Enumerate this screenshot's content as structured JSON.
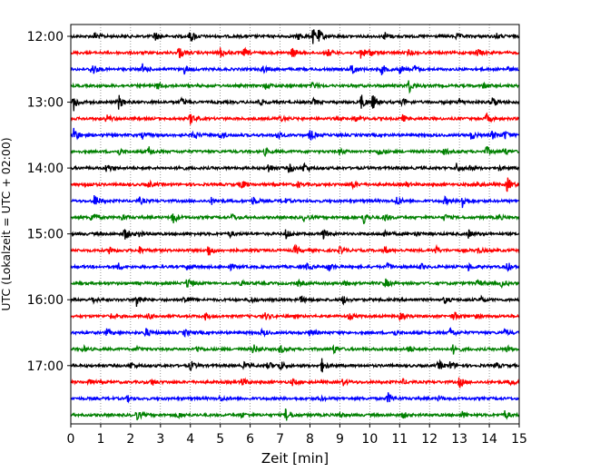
{
  "chart_data": {
    "type": "line",
    "xlabel": "Zeit  [min]",
    "ylabel": "UTC (Lokalzeit = UTC + 02:00)",
    "xlim": [
      0,
      15
    ],
    "x_ticks": [
      0,
      1,
      2,
      3,
      4,
      5,
      6,
      7,
      8,
      9,
      10,
      11,
      12,
      13,
      14,
      15
    ],
    "x_tick_labels": [
      "0",
      "1",
      "2",
      "3",
      "4",
      "5",
      "6",
      "7",
      "8",
      "9",
      "10",
      "11",
      "12",
      "13",
      "14",
      "15"
    ],
    "y_tick_labels": [
      "12:00",
      "13:00",
      "14:00",
      "15:00",
      "16:00",
      "17:00"
    ],
    "grid": {
      "vertical": true,
      "horizontal": false,
      "style": "dotted"
    },
    "trace_interval_min": 15,
    "trace_count": 24,
    "start_time": "12:00",
    "series_colors": [
      "#000000",
      "#ff0000",
      "#0000ff",
      "#008000"
    ],
    "traces": [
      {
        "start": "12:00",
        "color": "#000000",
        "events": [
          [
            0.8,
            0.5
          ],
          [
            2.8,
            0.6
          ],
          [
            4.0,
            0.8
          ],
          [
            7.6,
            0.4
          ],
          [
            8.1,
            0.9
          ],
          [
            8.3,
            0.6
          ],
          [
            10.5,
            0.5
          ],
          [
            12.9,
            0.3
          ],
          [
            14.2,
            0.4
          ]
        ]
      },
      {
        "start": "12:15",
        "color": "#ff0000",
        "events": [
          [
            3.6,
            0.8
          ],
          [
            5.0,
            0.6
          ],
          [
            5.8,
            0.5
          ],
          [
            7.4,
            0.6
          ],
          [
            8.6,
            0.4
          ],
          [
            9.7,
            0.7
          ],
          [
            10.0,
            0.4
          ],
          [
            11.3,
            0.3
          ],
          [
            13.6,
            0.5
          ]
        ]
      },
      {
        "start": "12:30",
        "color": "#0000ff",
        "events": [
          [
            0.7,
            0.9
          ],
          [
            2.4,
            0.6
          ],
          [
            3.8,
            0.5
          ],
          [
            6.4,
            0.5
          ],
          [
            9.4,
            0.9
          ],
          [
            10.4,
            0.6
          ],
          [
            11.0,
            0.5
          ],
          [
            11.5,
            0.4
          ],
          [
            14.6,
            0.3
          ]
        ]
      },
      {
        "start": "12:45",
        "color": "#008000",
        "events": [
          [
            2.9,
            0.4
          ],
          [
            6.5,
            0.4
          ],
          [
            8.1,
            0.4
          ],
          [
            11.3,
            0.9
          ],
          [
            13.8,
            0.3
          ]
        ]
      },
      {
        "start": "13:00",
        "color": "#000000",
        "events": [
          [
            0.1,
            1.0
          ],
          [
            1.6,
            0.9
          ],
          [
            3.7,
            0.5
          ],
          [
            6.3,
            0.4
          ],
          [
            8.1,
            0.4
          ],
          [
            9.7,
            1.0
          ],
          [
            10.1,
            0.9
          ],
          [
            11.1,
            0.4
          ],
          [
            13.0,
            0.4
          ],
          [
            14.1,
            0.7
          ]
        ]
      },
      {
        "start": "13:15",
        "color": "#ff0000",
        "events": [
          [
            1.2,
            0.5
          ],
          [
            4.0,
            0.7
          ],
          [
            7.0,
            0.4
          ],
          [
            9.5,
            0.4
          ],
          [
            11.1,
            0.4
          ],
          [
            13.9,
            0.6
          ]
        ]
      },
      {
        "start": "13:30",
        "color": "#0000ff",
        "events": [
          [
            0.1,
            1.0
          ],
          [
            2.4,
            0.4
          ],
          [
            4.1,
            0.6
          ],
          [
            5.0,
            0.5
          ],
          [
            6.9,
            0.5
          ],
          [
            8.0,
            0.7
          ],
          [
            13.4,
            0.6
          ],
          [
            14.1,
            0.5
          ],
          [
            14.5,
            0.6
          ]
        ]
      },
      {
        "start": "13:45",
        "color": "#008000",
        "events": [
          [
            1.6,
            0.4
          ],
          [
            2.6,
            0.6
          ],
          [
            6.5,
            0.4
          ],
          [
            9.0,
            0.4
          ],
          [
            10.3,
            0.5
          ],
          [
            12.5,
            0.4
          ],
          [
            13.9,
            0.6
          ],
          [
            14.5,
            0.4
          ]
        ]
      },
      {
        "start": "14:00",
        "color": "#000000",
        "events": [
          [
            1.2,
            0.6
          ],
          [
            3.6,
            0.3
          ],
          [
            6.6,
            0.6
          ],
          [
            7.3,
            0.6
          ],
          [
            7.8,
            0.6
          ],
          [
            12.9,
            0.6
          ],
          [
            13.3,
            0.4
          ],
          [
            14.3,
            0.3
          ]
        ]
      },
      {
        "start": "14:15",
        "color": "#ff0000",
        "events": [
          [
            0.5,
            0.3
          ],
          [
            2.6,
            0.4
          ],
          [
            5.7,
            0.6
          ],
          [
            7.6,
            0.3
          ],
          [
            9.4,
            0.5
          ],
          [
            11.2,
            0.3
          ],
          [
            13.6,
            0.4
          ],
          [
            14.6,
            0.9
          ]
        ]
      },
      {
        "start": "14:30",
        "color": "#0000ff",
        "events": [
          [
            0.8,
            0.8
          ],
          [
            2.3,
            0.4
          ],
          [
            4.7,
            0.4
          ],
          [
            6.1,
            0.5
          ],
          [
            7.1,
            0.4
          ],
          [
            10.9,
            0.6
          ],
          [
            12.5,
            0.5
          ],
          [
            13.1,
            1.0
          ]
        ]
      },
      {
        "start": "14:45",
        "color": "#008000",
        "events": [
          [
            0.7,
            0.8
          ],
          [
            1.7,
            0.4
          ],
          [
            3.4,
            0.8
          ],
          [
            5.4,
            0.4
          ],
          [
            7.8,
            0.4
          ],
          [
            9.8,
            0.8
          ],
          [
            10.5,
            0.5
          ],
          [
            12.5,
            0.4
          ],
          [
            14.3,
            0.3
          ]
        ]
      },
      {
        "start": "15:00",
        "color": "#000000",
        "events": [
          [
            1.8,
            0.8
          ],
          [
            2.3,
            0.4
          ],
          [
            5.3,
            0.4
          ],
          [
            7.2,
            0.6
          ],
          [
            8.4,
            0.8
          ],
          [
            10.5,
            0.4
          ],
          [
            11.5,
            0.3
          ],
          [
            13.3,
            0.5
          ]
        ]
      },
      {
        "start": "15:15",
        "color": "#ff0000",
        "events": [
          [
            1.3,
            0.5
          ],
          [
            2.3,
            0.4
          ],
          [
            4.6,
            0.8
          ],
          [
            7.5,
            0.6
          ],
          [
            9.0,
            0.4
          ],
          [
            10.5,
            0.4
          ],
          [
            12.2,
            0.5
          ],
          [
            13.6,
            0.4
          ]
        ]
      },
      {
        "start": "15:30",
        "color": "#0000ff",
        "events": [
          [
            1.6,
            0.4
          ],
          [
            3.9,
            0.4
          ],
          [
            5.3,
            0.4
          ],
          [
            7.9,
            0.4
          ],
          [
            8.6,
            0.6
          ],
          [
            10.6,
            0.4
          ],
          [
            11.7,
            0.4
          ],
          [
            13.3,
            0.4
          ],
          [
            14.6,
            0.6
          ]
        ]
      },
      {
        "start": "15:45",
        "color": "#008000",
        "events": [
          [
            3.9,
            0.8
          ],
          [
            5.7,
            0.3
          ],
          [
            7.6,
            0.3
          ],
          [
            9.1,
            0.4
          ],
          [
            10.5,
            0.6
          ],
          [
            13.6,
            0.4
          ],
          [
            14.4,
            0.4
          ]
        ]
      },
      {
        "start": "16:00",
        "color": "#000000",
        "events": [
          [
            0.7,
            0.4
          ],
          [
            2.2,
            0.9
          ],
          [
            3.8,
            0.6
          ],
          [
            6.0,
            0.4
          ],
          [
            7.7,
            0.4
          ],
          [
            9.1,
            0.5
          ],
          [
            12.5,
            0.4
          ],
          [
            13.7,
            0.4
          ]
        ]
      },
      {
        "start": "16:15",
        "color": "#ff0000",
        "events": [
          [
            1.3,
            0.4
          ],
          [
            2.6,
            0.3
          ],
          [
            4.5,
            0.4
          ],
          [
            6.5,
            0.4
          ],
          [
            9.3,
            0.4
          ],
          [
            11.0,
            0.4
          ],
          [
            12.8,
            0.6
          ],
          [
            13.5,
            0.3
          ]
        ]
      },
      {
        "start": "16:30",
        "color": "#0000ff",
        "events": [
          [
            1.2,
            0.4
          ],
          [
            2.5,
            0.6
          ],
          [
            3.8,
            0.4
          ],
          [
            6.4,
            0.4
          ],
          [
            8.0,
            0.4
          ],
          [
            10.8,
            0.4
          ],
          [
            12.7,
            0.6
          ],
          [
            14.5,
            0.4
          ]
        ]
      },
      {
        "start": "16:45",
        "color": "#008000",
        "events": [
          [
            0.4,
            0.4
          ],
          [
            2.2,
            0.4
          ],
          [
            4.2,
            0.4
          ],
          [
            6.1,
            0.6
          ],
          [
            7.0,
            0.5
          ],
          [
            8.8,
            0.5
          ],
          [
            11.3,
            0.4
          ],
          [
            12.8,
            0.6
          ],
          [
            14.6,
            0.4
          ]
        ]
      },
      {
        "start": "17:00",
        "color": "#000000",
        "events": [
          [
            2.0,
            0.4
          ],
          [
            4.0,
            0.6
          ],
          [
            5.8,
            0.4
          ],
          [
            6.6,
            0.5
          ],
          [
            7.0,
            0.6
          ],
          [
            8.4,
            0.8
          ],
          [
            12.3,
            0.6
          ],
          [
            12.7,
            0.5
          ],
          [
            14.2,
            0.4
          ]
        ]
      },
      {
        "start": "17:15",
        "color": "#ff0000",
        "events": [
          [
            0.6,
            0.3
          ],
          [
            2.7,
            0.4
          ],
          [
            5.7,
            0.6
          ],
          [
            7.4,
            0.4
          ],
          [
            9.1,
            0.4
          ],
          [
            11.1,
            0.3
          ],
          [
            13.0,
            0.6
          ],
          [
            14.7,
            0.4
          ]
        ]
      },
      {
        "start": "17:30",
        "color": "#0000ff",
        "events": [
          [
            1.9,
            0.3
          ],
          [
            5.0,
            0.3
          ],
          [
            8.3,
            0.3
          ],
          [
            10.6,
            0.7
          ],
          [
            12.3,
            0.3
          ]
        ]
      },
      {
        "start": "17:45",
        "color": "#008000",
        "events": [
          [
            2.2,
            0.6
          ],
          [
            3.6,
            0.4
          ],
          [
            5.7,
            0.3
          ],
          [
            7.2,
            0.9
          ],
          [
            9.0,
            0.3
          ],
          [
            11.1,
            0.4
          ],
          [
            13.1,
            0.4
          ],
          [
            14.5,
            0.6
          ]
        ]
      }
    ]
  }
}
